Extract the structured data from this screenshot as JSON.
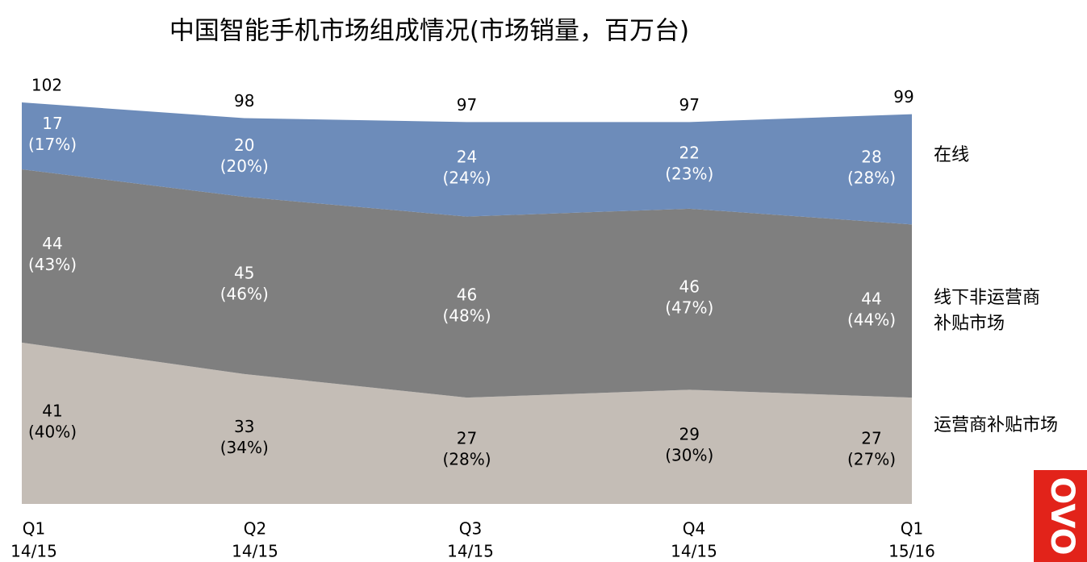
{
  "chart_data": {
    "type": "stacked_area",
    "title": "中国智能手机市场组成情况(市场销量，百万台)",
    "categories": [
      [
        "Q1",
        "14/15"
      ],
      [
        "Q2",
        "14/15"
      ],
      [
        "Q3",
        "14/15"
      ],
      [
        "Q4",
        "14/15"
      ],
      [
        "Q1",
        "15/16"
      ]
    ],
    "series": [
      {
        "name": "运营商补贴市场",
        "color": "#c4bdb6",
        "label_color": "#000000",
        "values": [
          41,
          33,
          27,
          29,
          27
        ],
        "shares": [
          40,
          34,
          28,
          30,
          27
        ],
        "share_labels": [
          "(40%)",
          "(34%)",
          "(28%)",
          "(30%)",
          "(27%)"
        ]
      },
      {
        "name": "线下非运营商补贴市场",
        "color": "#7f7f7f",
        "label_color": "#ffffff",
        "values": [
          44,
          45,
          46,
          46,
          44
        ],
        "shares": [
          43,
          46,
          48,
          47,
          44
        ],
        "share_labels": [
          "(43%)",
          "(46%)",
          "(48%)",
          "(47%)",
          "(44%)"
        ]
      },
      {
        "name": "在线",
        "color": "#6d8cba",
        "label_color": "#ffffff",
        "values": [
          17,
          20,
          24,
          22,
          28
        ],
        "shares": [
          17,
          20,
          24,
          23,
          28
        ],
        "share_labels": [
          "(17%)",
          "(20%)",
          "(24%)",
          "(23%)",
          "(28%)"
        ]
      }
    ],
    "totals": [
      102,
      98,
      97,
      97,
      99
    ]
  },
  "logo": "OVO"
}
